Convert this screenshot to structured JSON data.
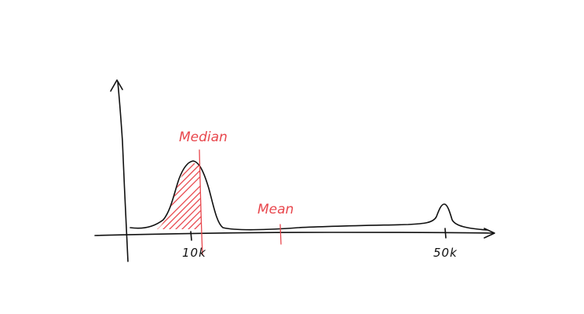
{
  "labels": {
    "median": "Median",
    "mean": "Mean"
  },
  "ticks": [
    {
      "label": "10k"
    },
    {
      "label": "50k"
    }
  ],
  "colors": {
    "ink": "#111111",
    "annotation": "#e8474d",
    "background": "#ffffff"
  }
}
